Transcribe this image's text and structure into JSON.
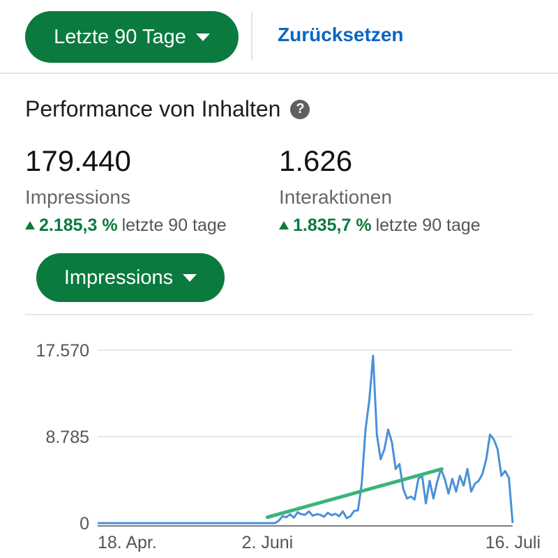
{
  "filters": {
    "date_range_label": "Letzte 90 Tage",
    "reset_label": "Zurücksetzen"
  },
  "section": {
    "title": "Performance von Inhalten"
  },
  "metrics": [
    {
      "value": "179.440",
      "label": "Impressions",
      "change": "2.185,3 %",
      "period": "letzte 90 tage"
    },
    {
      "value": "1.626",
      "label": "Interaktionen",
      "change": "1.835,7 %",
      "period": "letzte 90 tage"
    }
  ],
  "metric_selector": {
    "label": "Impressions"
  },
  "colors": {
    "brand_green": "#0b7a3e",
    "link_blue": "#0a66c2",
    "line_blue": "#4a90d9",
    "trend_green": "#3cb37a"
  },
  "icons": {
    "help": "question-circle-icon",
    "dropdown": "caret-down-icon",
    "change": "triangle-up-icon"
  },
  "chart_data": {
    "type": "line",
    "title": "",
    "xlabel": "",
    "ylabel": "",
    "ylim": [
      0,
      17570
    ],
    "y_ticks": [
      "17.570",
      "8.785",
      "0"
    ],
    "y_tick_values": [
      17570,
      8785,
      0
    ],
    "x_ticks": [
      "18. Apr.",
      "2. Juni",
      "16. Juli"
    ],
    "x_tick_positions": [
      0,
      45,
      89
    ],
    "grid": true,
    "series": [
      {
        "values": [
          0,
          0,
          0,
          0,
          0,
          0,
          0,
          0,
          0,
          0,
          0,
          0,
          0,
          0,
          0,
          0,
          0,
          0,
          0,
          0,
          0,
          0,
          0,
          0,
          0,
          0,
          0,
          0,
          0,
          0,
          0,
          0,
          0,
          0,
          0,
          0,
          0,
          0,
          0,
          0,
          0,
          0,
          0,
          0,
          0,
          0,
          0,
          0,
          250,
          700,
          600,
          900,
          550,
          1100,
          900,
          850,
          1200,
          750,
          900,
          850,
          650,
          1050,
          800,
          950,
          700,
          1200,
          500,
          700,
          1250,
          1300,
          4000,
          9500,
          12500,
          17000,
          9000,
          6500,
          7500,
          9500,
          8200,
          5500,
          6000,
          3500,
          2500,
          2700,
          2400,
          4500,
          4800,
          2000,
          4300,
          2500,
          4200,
          5500,
          4500,
          3000,
          4500,
          3200,
          4800,
          3800,
          5500,
          3200,
          4000,
          4300,
          5000,
          6500,
          9000,
          8500,
          7500,
          4800,
          5300,
          4600,
          0
        ]
      }
    ],
    "trend_line": {
      "start": [
        45,
        600
      ],
      "end": [
        89,
        5500
      ]
    }
  }
}
